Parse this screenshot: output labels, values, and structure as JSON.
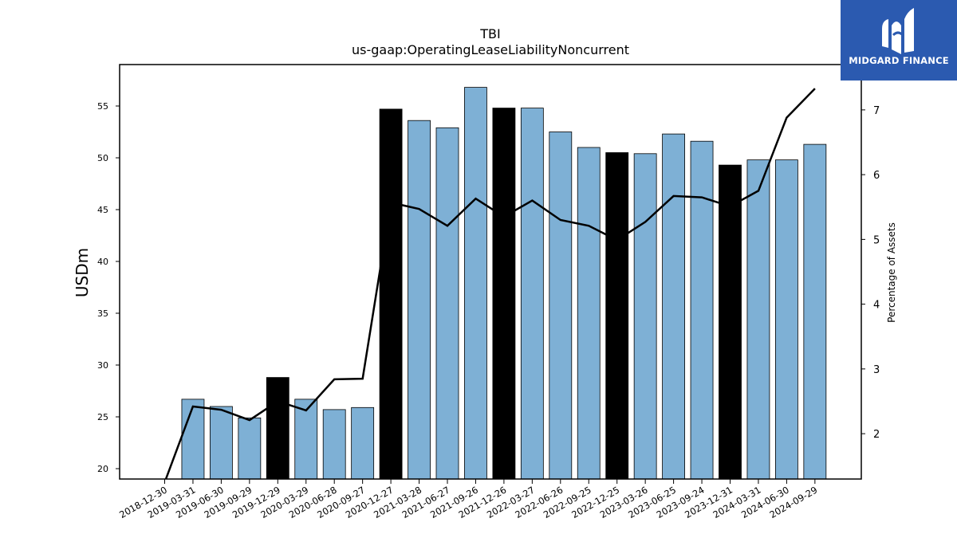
{
  "brand": {
    "name": "MIDGARD FINANCE"
  },
  "chart_data": {
    "type": "bar",
    "title": "TBI",
    "subtitle": "us-gaap:OperatingLeaseLiabilityNoncurrent",
    "ylabel": "USDm",
    "y2label": "Percentage of Assets",
    "ylim": [
      19,
      59
    ],
    "y2lim": [
      1.3,
      7.7
    ],
    "yticks": [
      20,
      25,
      30,
      35,
      40,
      45,
      50,
      55
    ],
    "y2ticks": [
      2,
      3,
      4,
      5,
      6,
      7
    ],
    "categories": [
      "2018-12-30",
      "2019-03-31",
      "2019-06-30",
      "2019-09-29",
      "2019-12-29",
      "2020-03-29",
      "2020-06-28",
      "2020-09-27",
      "2020-12-27",
      "2021-03-28",
      "2021-06-27",
      "2021-09-26",
      "2021-12-26",
      "2022-03-27",
      "2022-06-26",
      "2022-09-25",
      "2022-12-25",
      "2023-03-26",
      "2023-06-25",
      "2023-09-24",
      "2023-12-31",
      "2024-03-31",
      "2024-06-30",
      "2024-09-29"
    ],
    "values": [
      null,
      26.7,
      26.0,
      24.9,
      28.8,
      26.7,
      25.7,
      25.9,
      54.7,
      53.6,
      52.9,
      56.8,
      54.8,
      54.8,
      52.5,
      51.0,
      50.5,
      50.4,
      52.3,
      51.6,
      49.3,
      49.8,
      49.8,
      51.3
    ],
    "highlighted": [
      "2019-12-29",
      "2020-12-27",
      "2021-12-26",
      "2022-12-25",
      "2023-12-31"
    ],
    "series": [
      {
        "axis": "right",
        "type": "line",
        "values": [
          1.25,
          2.42,
          2.37,
          2.21,
          2.5,
          2.36,
          2.84,
          2.85,
          5.57,
          5.47,
          5.21,
          5.63,
          5.35,
          5.6,
          5.3,
          5.21,
          4.99,
          5.27,
          5.67,
          5.65,
          5.51,
          5.75,
          6.88,
          7.33
        ]
      }
    ],
    "colors": {
      "bar": "#7eb0d5",
      "highlight": "#000000",
      "line": "#000000"
    },
    "grid": false
  }
}
